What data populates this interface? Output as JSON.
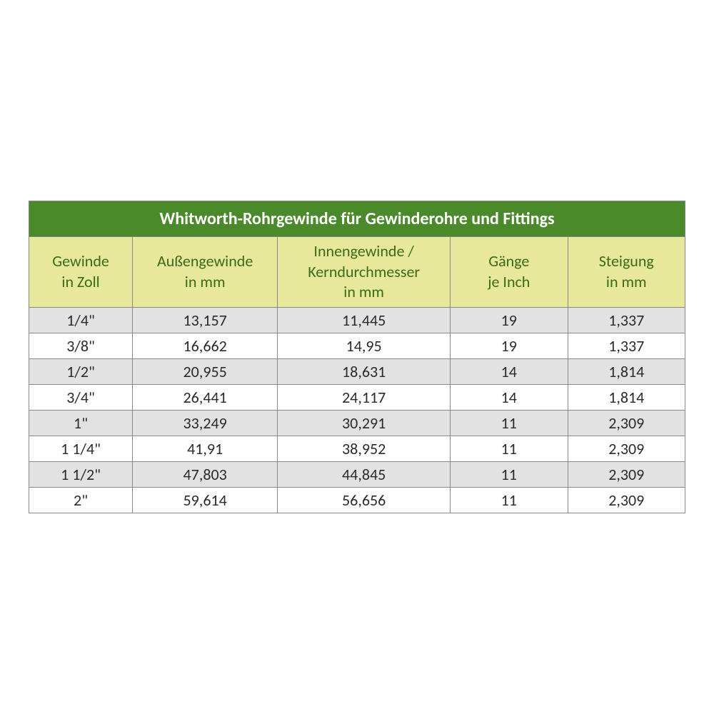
{
  "table": {
    "title": "Whitworth-Rohrgewinde für Gewinderohre und Fittings",
    "title_bg": "#4a8a2a",
    "title_color": "#ffffff",
    "header_bg": "#e8e89a",
    "header_color": "#3a6a1a",
    "odd_row_bg": "#e2e2e2",
    "even_row_bg": "#ffffff",
    "border_color": "#888888",
    "font_family": "Calibri, Arial, sans-serif",
    "title_fontsize": 24,
    "header_fontsize": 22,
    "cell_fontsize": 22,
    "columns": [
      {
        "line1": "Gewinde",
        "line2": "in Zoll",
        "width_pct": 15
      },
      {
        "line1": "Außengewinde",
        "line2": "in mm",
        "width_pct": 21
      },
      {
        "line1": "Innengewinde /",
        "line2": "Kerndurchmesser",
        "line3": "in mm",
        "width_pct": 25
      },
      {
        "line1": "Gänge",
        "line2": "je Inch",
        "width_pct": 17
      },
      {
        "line1": "Steigung",
        "line2": "in mm",
        "width_pct": 17
      }
    ],
    "rows": [
      {
        "c1": "1/4\"",
        "c2": "13,157",
        "c3": "11,445",
        "c4": "19",
        "c5": "1,337"
      },
      {
        "c1": "3/8\"",
        "c2": "16,662",
        "c3": "14,95",
        "c4": "19",
        "c5": "1,337"
      },
      {
        "c1": "1/2\"",
        "c2": "20,955",
        "c3": "18,631",
        "c4": "14",
        "c5": "1,814"
      },
      {
        "c1": "3/4\"",
        "c2": "26,441",
        "c3": "24,117",
        "c4": "14",
        "c5": "1,814"
      },
      {
        "c1": "1\"",
        "c2": "33,249",
        "c3": "30,291",
        "c4": "11",
        "c5": "2,309"
      },
      {
        "c1": "1 1/4\"",
        "c2": "41,91",
        "c3": "38,952",
        "c4": "11",
        "c5": "2,309"
      },
      {
        "c1": "1 1/2\"",
        "c2": "47,803",
        "c3": "44,845",
        "c4": "11",
        "c5": "2,309"
      },
      {
        "c1": "2\"",
        "c2": "59,614",
        "c3": "56,656",
        "c4": "11",
        "c5": "2,309"
      }
    ]
  }
}
